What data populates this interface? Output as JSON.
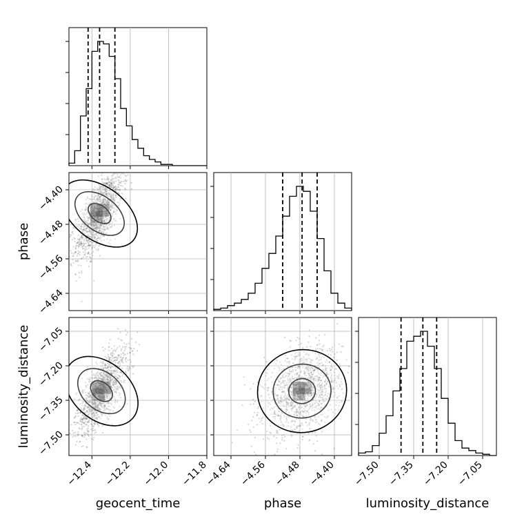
{
  "chart_data": {
    "type": "corner",
    "parameters": [
      "geocent_time",
      "phase",
      "luminosity_distance"
    ],
    "ticks": {
      "geocent_time": {
        "values": [
          -12.4,
          -12.2,
          -12.0,
          -11.8
        ],
        "labels": [
          "−12.4",
          "−12.2",
          "−12.0",
          "−11.8"
        ],
        "range": [
          -12.52,
          -11.8
        ]
      },
      "phase": {
        "values": [
          -4.64,
          -4.56,
          -4.48,
          -4.4
        ],
        "labels": [
          "−4.64",
          "−4.56",
          "−4.48",
          "−4.40"
        ],
        "range": [
          -4.68,
          -4.36
        ]
      },
      "luminosity_distance": {
        "values": [
          -7.5,
          -7.35,
          -7.2,
          -7.05
        ],
        "labels": [
          "−7.50",
          "−7.35",
          "−7.20",
          "−7.05"
        ],
        "range": [
          -7.59,
          -6.99
        ]
      }
    },
    "histograms": [
      {
        "parameter": "geocent_time",
        "quantiles": [
          -12.42,
          -12.36,
          -12.28
        ],
        "counts": [
          2,
          12,
          40,
          62,
          92,
          100,
          98,
          88,
          70,
          46,
          32,
          21,
          14,
          8,
          5,
          3,
          1,
          1,
          0,
          0,
          0,
          0,
          0,
          0
        ]
      },
      {
        "parameter": "phase",
        "quantiles": [
          -4.52,
          -4.475,
          -4.44
        ],
        "counts": [
          1,
          2,
          4,
          6,
          9,
          14,
          22,
          34,
          46,
          60,
          76,
          92,
          100,
          96,
          80,
          58,
          32,
          14,
          6,
          2
        ]
      },
      {
        "parameter": "luminosity_distance",
        "quantiles": [
          -7.405,
          -7.31,
          -7.25
        ],
        "counts": [
          2,
          3,
          8,
          18,
          32,
          52,
          70,
          92,
          96,
          100,
          88,
          70,
          46,
          26,
          12,
          6,
          4,
          2,
          1,
          0
        ]
      }
    ],
    "scatter_panels": [
      {
        "x": "geocent_time",
        "y": "phase",
        "center": [
          -12.36,
          -4.455
        ],
        "spread": [
          0.06,
          0.05
        ],
        "correlation": 0.7
      },
      {
        "x": "geocent_time",
        "y": "luminosity_distance",
        "center": [
          -12.35,
          -7.31
        ],
        "spread": [
          0.065,
          0.09
        ],
        "correlation": 0.7
      },
      {
        "x": "phase",
        "y": "luminosity_distance",
        "center": [
          -4.475,
          -7.31
        ],
        "spread": [
          0.045,
          0.09
        ],
        "correlation": 0.3
      }
    ],
    "grid": true
  }
}
